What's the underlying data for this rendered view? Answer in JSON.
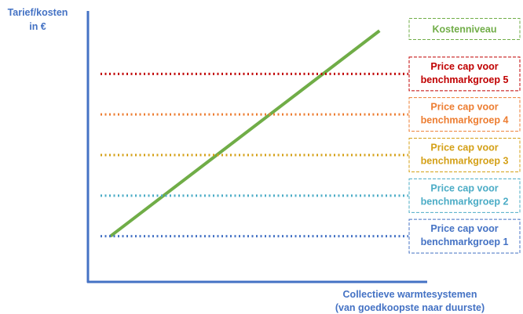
{
  "chart_data": {
    "type": "line",
    "title": "",
    "ylabel": [
      "Tarief/kosten",
      "in €"
    ],
    "xlabel": [
      "Collectieve warmtesystemen",
      "(van goedkoopste naar duurste)"
    ],
    "ticks_shown": false,
    "ylim": [
      0,
      100
    ],
    "xlim": [
      0,
      100
    ],
    "axis_color": "#4472C4",
    "series": [
      {
        "name": "Kostenniveau",
        "color": "#70AD47",
        "style": "solid",
        "label": [
          "Kostenniveau"
        ],
        "points": [
          [
            7,
            18
          ],
          [
            91,
            99
          ]
        ]
      },
      {
        "name": "Price cap voor benchmarkgroep 5",
        "color": "#C00000",
        "style": "dotted",
        "label": [
          "Price cap voor",
          "benchmarkgroep 5"
        ],
        "y": 82
      },
      {
        "name": "Price cap voor benchmarkgroep 4",
        "color": "#ED7D31",
        "style": "dotted",
        "label": [
          "Price cap voor",
          "benchmarkgroep 4"
        ],
        "y": 66
      },
      {
        "name": "Price cap voor benchmarkgroep 3",
        "color": "#D4A017",
        "style": "dotted",
        "label": [
          "Price cap voor",
          "benchmarkgroep 3"
        ],
        "y": 50
      },
      {
        "name": "Price cap voor benchmarkgroep 2",
        "color": "#4BACC6",
        "style": "dotted",
        "label": [
          "Price cap voor",
          "benchmarkgroep 2"
        ],
        "y": 34
      },
      {
        "name": "Price cap voor benchmarkgroep 1",
        "color": "#4472C4",
        "style": "dotted",
        "label": [
          "Price cap voor",
          "benchmarkgroep 1"
        ],
        "y": 18
      }
    ]
  }
}
